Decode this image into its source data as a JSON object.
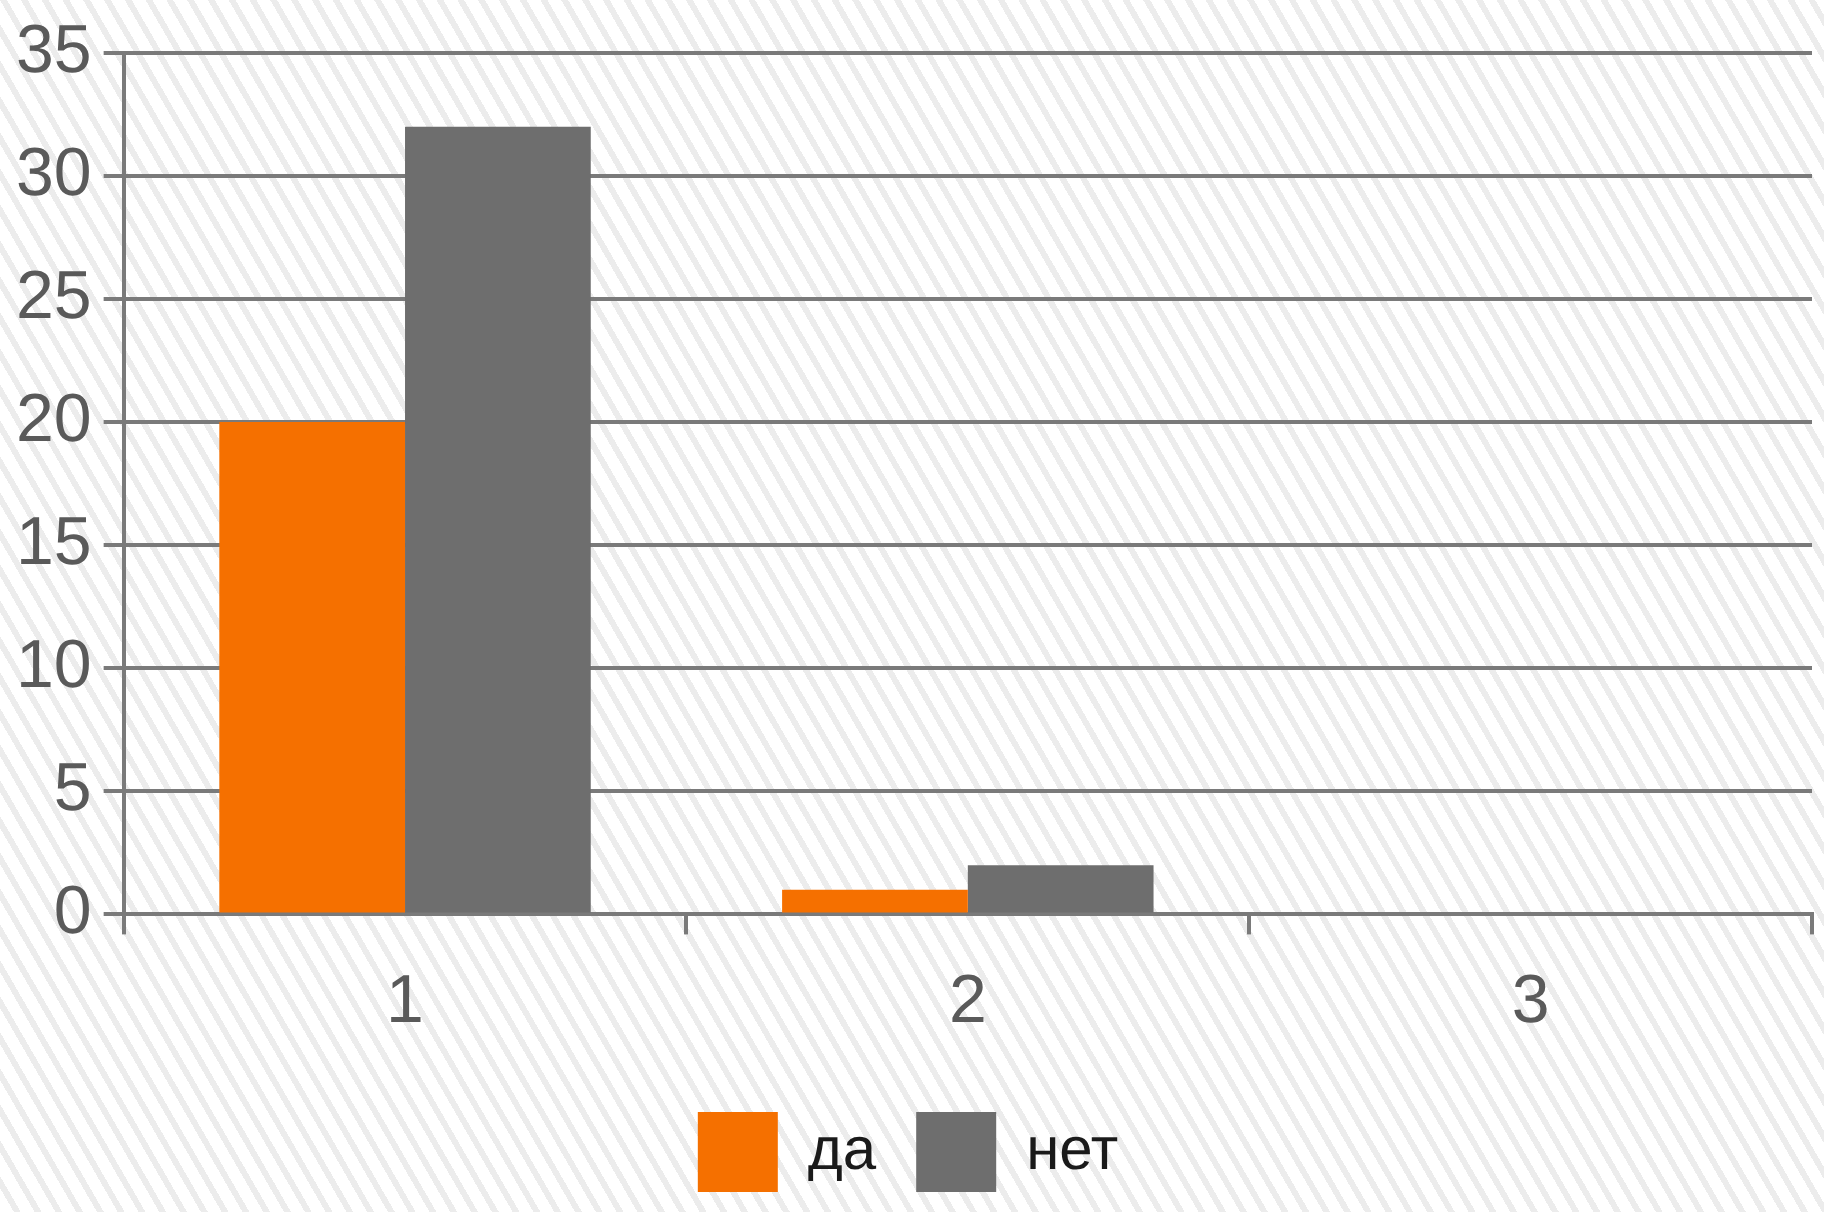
{
  "chart_data": {
    "type": "bar",
    "categories": [
      "1",
      "2",
      "3"
    ],
    "series": [
      {
        "name": "да",
        "color": "#f57000",
        "values": [
          20,
          1,
          0
        ]
      },
      {
        "name": "нет",
        "color": "#6e6e6e",
        "values": [
          32,
          2,
          0
        ]
      }
    ],
    "ylim": [
      0,
      35
    ],
    "yticks": [
      0,
      5,
      10,
      15,
      20,
      25,
      30,
      35
    ],
    "grid": "y",
    "legend": "bottom"
  }
}
